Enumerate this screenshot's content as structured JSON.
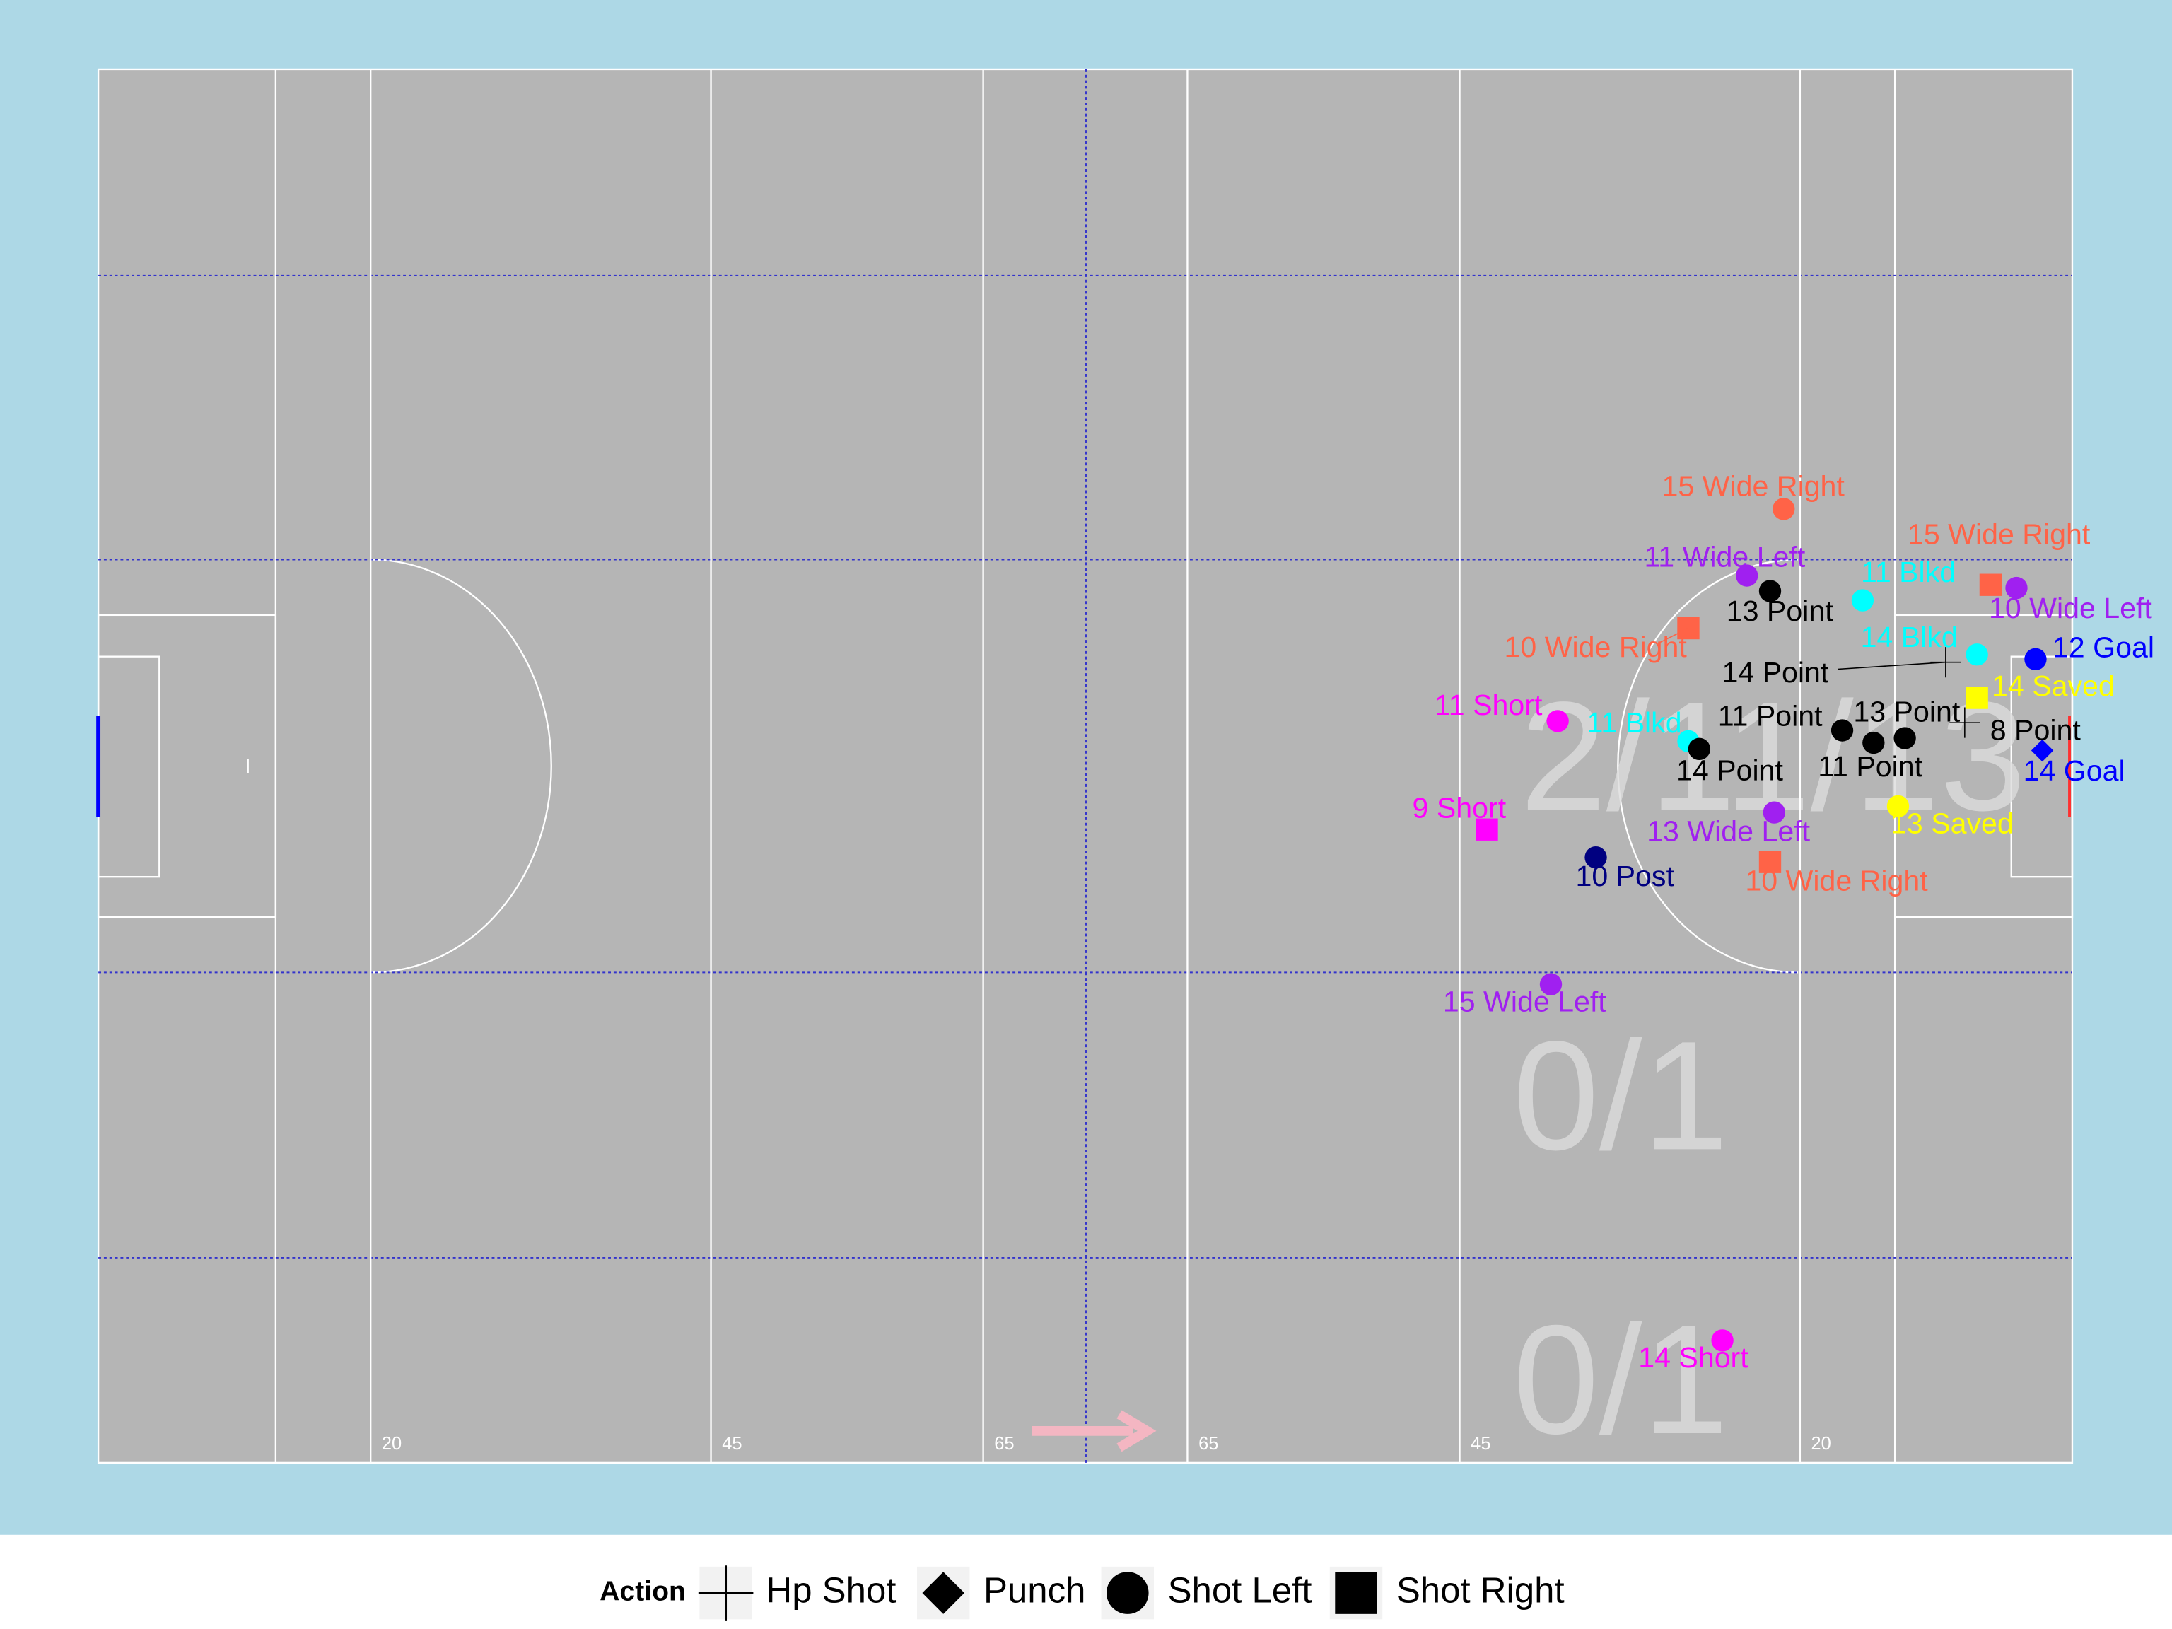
{
  "chart_data": {
    "type": "scatter",
    "legend_title": "Action",
    "xlim": [
      0,
      145
    ],
    "ylim": [
      0,
      90
    ],
    "xticks": [
      20,
      45,
      65,
      {
        "value": 80,
        "label": "65"
      },
      {
        "value": 100,
        "label": "45"
      },
      {
        "value": 125,
        "label": "20"
      }
    ],
    "annotations": [
      "2/11/13",
      "0/1",
      "0/1"
    ],
    "series": [
      {
        "name": "Hp Shot",
        "marker": "cross",
        "x": [
          135.7,
          137.1
        ],
        "values": [
          51.7,
          47.8
        ],
        "labels": [
          "14 Point",
          "8 Point"
        ],
        "colors": [
          "#000000",
          "#000000"
        ]
      },
      {
        "name": "Punch",
        "marker": "diamond",
        "x": [
          142.8
        ],
        "values": [
          46.0
        ],
        "labels": [
          "14 Goal"
        ],
        "colors": [
          "#0000ff"
        ]
      },
      {
        "name": "Shot Left",
        "marker": "circle",
        "x": [
          123.8,
          121.1,
          122.8,
          129.6,
          140.9,
          138.0,
          142.3,
          107.2,
          128.1,
          130.4,
          132.7,
          116.8,
          117.6,
          132.2,
          123.1,
          110.0,
          106.7,
          119.3
        ],
        "values": [
          61.6,
          57.3,
          56.3,
          55.7,
          56.5,
          52.2,
          51.9,
          47.9,
          47.3,
          46.5,
          46.8,
          46.6,
          46.1,
          42.4,
          42.0,
          39.1,
          30.9,
          7.9
        ],
        "labels": [
          "15 Wide Right",
          "11 Wide Left",
          "13 Point",
          "11 Blkd",
          "10 Wide Left",
          "14 Blkd",
          "12 Goal",
          "11 Short",
          "11 Point",
          "13 Point",
          "11 Point",
          "11 Blkd",
          "14 Point",
          "13 Saved",
          "13 Wide Left",
          "10 Post",
          "15 Wide Left",
          "14 Short"
        ],
        "colors": [
          "#ff6347",
          "#a020f0",
          "#000000",
          "#00ffff",
          "#a020f0",
          "#00ffff",
          "#0000ff",
          "#ff00ff",
          "#000000",
          "#000000",
          "#000000",
          "#00ffff",
          "#000000",
          "#ffff00",
          "#a020f0",
          "#000080",
          "#a020f0",
          "#ff00ff"
        ]
      },
      {
        "name": "Shot Right",
        "marker": "square",
        "x": [
          139.0,
          116.8,
          138.0,
          102.0,
          122.8
        ],
        "values": [
          56.7,
          53.9,
          49.4,
          40.9,
          38.8
        ],
        "labels": [
          "15 Wide Right",
          "10 Wide Right",
          "14 Saved",
          "9 Short",
          "10 Wide Right"
        ],
        "colors": [
          "#ff6347",
          "#ff6347",
          "#ffff00",
          "#ff00ff",
          "#ff6347"
        ]
      }
    ]
  }
}
